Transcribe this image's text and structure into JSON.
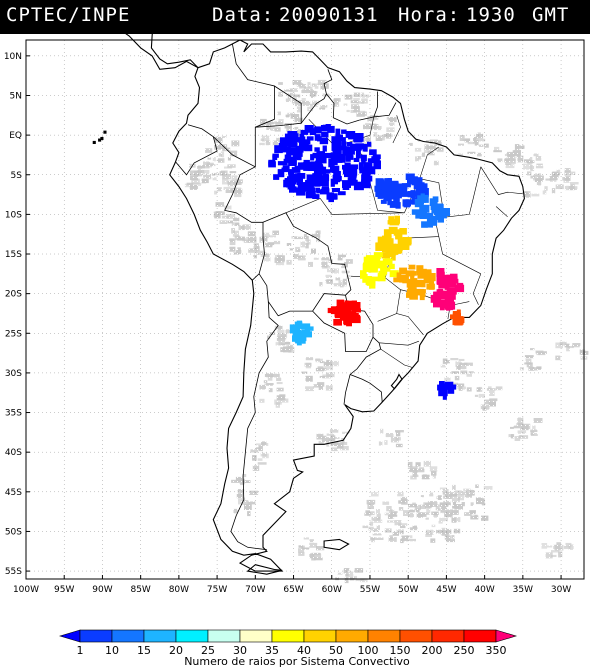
{
  "header": {
    "source": "CPTEC/INPE",
    "date_label": "Data:",
    "date_value": "20090131",
    "time_label": "Hora:",
    "time_value": "1930",
    "timezone": "GMT"
  },
  "map": {
    "lat_labels": [
      "10N",
      "5N",
      "EQ",
      "5S",
      "10S",
      "15S",
      "20S",
      "25S",
      "30S",
      "35S",
      "40S",
      "45S",
      "50S",
      "55S"
    ],
    "lon_labels": [
      "100W",
      "95W",
      "90W",
      "85W",
      "80W",
      "75W",
      "70W",
      "65W",
      "60W",
      "55W",
      "50W",
      "45W",
      "40W",
      "35W",
      "30W"
    ],
    "lat_range": [
      -56,
      12
    ],
    "lon_range": [
      -100,
      -27
    ],
    "grid": true,
    "cloud_color": "#c8c8c8",
    "coast_color": "#000000"
  },
  "colorbar": {
    "ticks": [
      "1",
      "10",
      "15",
      "20",
      "25",
      "30",
      "35",
      "40",
      "50",
      "100",
      "150",
      "200",
      "250",
      "350"
    ],
    "colors": [
      "#0000ff",
      "#0a3cff",
      "#1476ff",
      "#1eb4ff",
      "#00f0ff",
      "#c8fff0",
      "#ffffc8",
      "#ffff00",
      "#ffd200",
      "#ffaa00",
      "#ff8200",
      "#ff5000",
      "#ff2800",
      "#ff0000",
      "#ff0078"
    ],
    "caption": "Numero de raios por Sistema Convectivo"
  },
  "lightning_systems": [
    {
      "name": "amazon-blue",
      "color": "#0000ff",
      "lon": -61,
      "lat": -3.5
    },
    {
      "name": "para-blue",
      "color": "#0a3cff",
      "lon": -51,
      "lat": -7
    },
    {
      "name": "tocantins-blue",
      "color": "#1476ff",
      "lon": -47,
      "lat": -9.5
    },
    {
      "name": "goias-orange",
      "color": "#ffd200",
      "lon": -52,
      "lat": -13
    },
    {
      "name": "mato-grosso-yellow",
      "color": "#ffff00",
      "lon": -54,
      "lat": -17
    },
    {
      "name": "minas-orange",
      "color": "#ffaa00",
      "lon": -49,
      "lat": -18.5
    },
    {
      "name": "minas-magenta",
      "color": "#ff0078",
      "lon": -45,
      "lat": -19.5
    },
    {
      "name": "saopaulo-red",
      "color": "#ff0000",
      "lon": -58,
      "lat": -22.5
    },
    {
      "name": "rio-orange",
      "color": "#ff5000",
      "lon": -43,
      "lat": -23
    },
    {
      "name": "paraguay-cyan",
      "color": "#1eb4ff",
      "lon": -64,
      "lat": -25
    },
    {
      "name": "atlantic-blue",
      "color": "#0000ff",
      "lon": -45,
      "lat": -32
    }
  ]
}
